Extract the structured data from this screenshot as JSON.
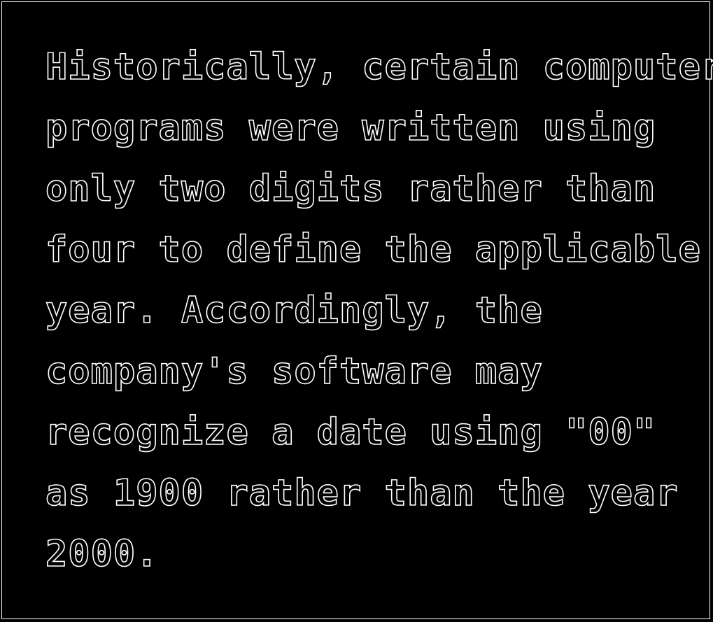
{
  "document": {
    "lines": [
      "Historically, certain computer",
      "programs were written using",
      "only two digits rather than",
      "four to define the applicable",
      "year. Accordingly, the",
      "company's software may",
      "recognize a date using \"00\"",
      "as 1900 rather than the year",
      "2000."
    ]
  },
  "colors": {
    "background": "#000000",
    "text_outline": "#ffffff",
    "border": "#ffffff"
  }
}
